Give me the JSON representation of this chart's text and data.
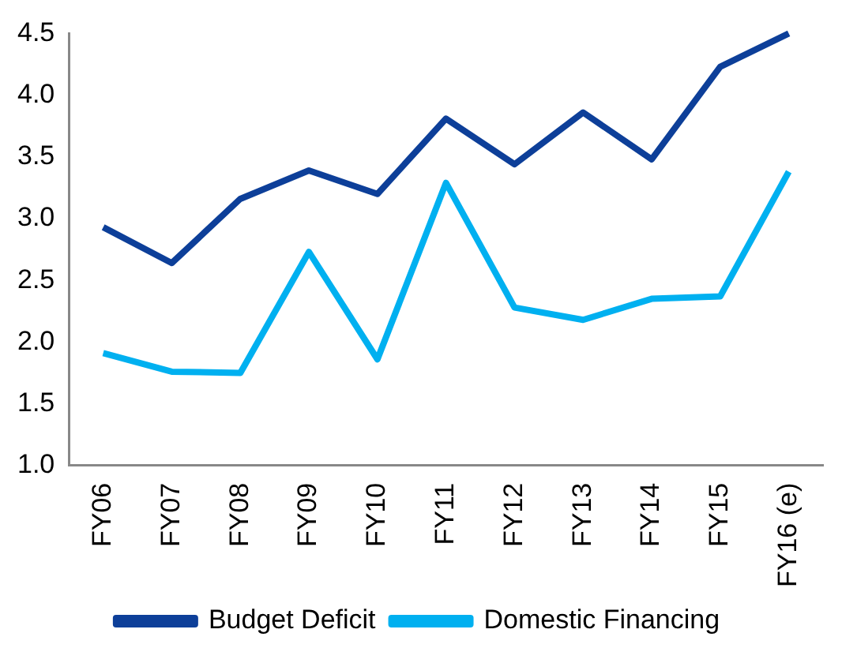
{
  "chart_data": {
    "type": "line",
    "categories": [
      "FY06",
      "FY07",
      "FY08",
      "FY09",
      "FY10",
      "FY11",
      "FY12",
      "FY13",
      "FY14",
      "FY15",
      "FY16 (e)"
    ],
    "series": [
      {
        "name": "Budget Deficit",
        "color": "#0d3f99",
        "values": [
          2.93,
          2.64,
          3.16,
          3.39,
          3.2,
          3.81,
          3.44,
          3.86,
          3.48,
          4.23,
          4.5
        ]
      },
      {
        "name": "Domestic Financing",
        "color": "#00b0f0",
        "values": [
          1.91,
          1.76,
          1.75,
          2.73,
          1.86,
          3.29,
          2.28,
          2.18,
          2.35,
          2.37,
          3.38
        ]
      }
    ],
    "ylim": [
      1.0,
      4.5
    ],
    "yticks": [
      {
        "value": 1,
        "label": "1.0"
      },
      {
        "value": 1.5,
        "label": "1.5"
      },
      {
        "value": 2,
        "label": "2.0"
      },
      {
        "value": 2.5,
        "label": "2.5"
      },
      {
        "value": 3,
        "label": "3.0"
      },
      {
        "value": 3.5,
        "label": "3.5"
      },
      {
        "value": 4,
        "label": "4.0"
      },
      {
        "value": 4.5,
        "label": "4.5"
      }
    ],
    "grid": false,
    "legend": "bottom",
    "marker": "none",
    "line_style": "solid"
  }
}
